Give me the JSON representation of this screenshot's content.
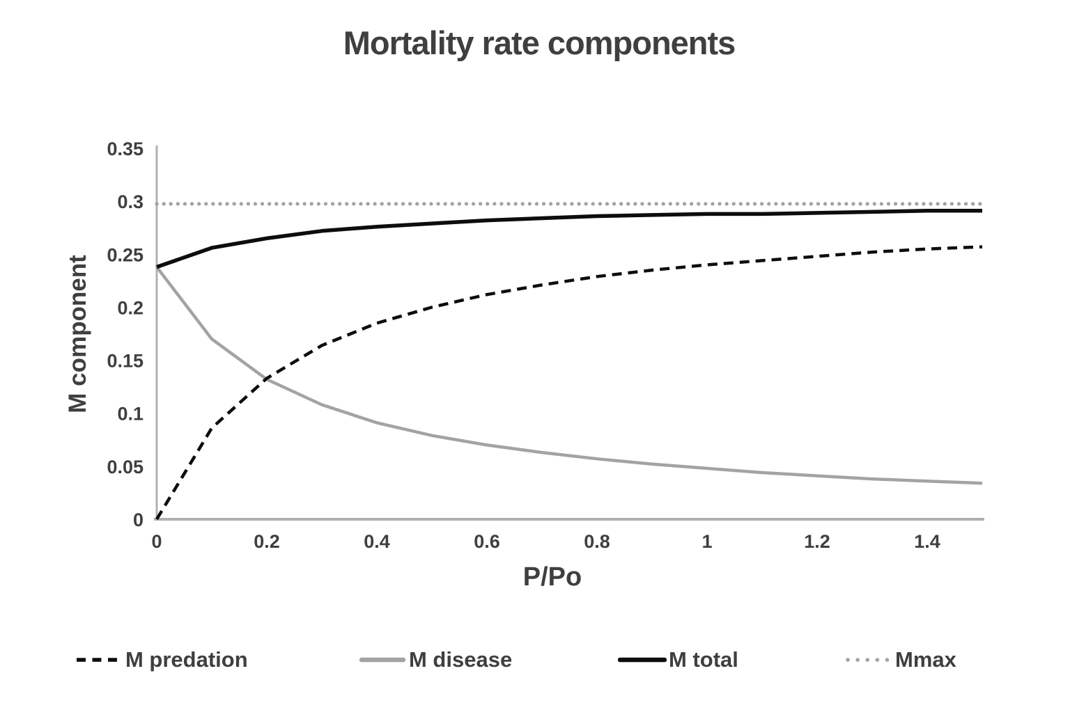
{
  "chart_data": {
    "type": "line",
    "title": "Mortality rate components",
    "xlabel": "P/Po",
    "ylabel": "M component",
    "xlim": [
      0,
      1.5
    ],
    "ylim": [
      0,
      0.35
    ],
    "grid": false,
    "legend_position": "bottom",
    "x_ticks": [
      "0",
      "0.2",
      "0.4",
      "0.6",
      "0.8",
      "1",
      "1.2",
      "1.4"
    ],
    "x_tick_values": [
      0,
      0.2,
      0.4,
      0.6,
      0.8,
      1,
      1.2,
      1.4
    ],
    "y_ticks": [
      "0",
      "0.05",
      "0.1",
      "0.15",
      "0.2",
      "0.25",
      "0.3",
      "0.35"
    ],
    "y_tick_values": [
      0,
      0.05,
      0.1,
      0.15,
      0.2,
      0.25,
      0.3,
      0.35
    ],
    "x": [
      0,
      0.1,
      0.2,
      0.3,
      0.4,
      0.5,
      0.6,
      0.7,
      0.8,
      0.9,
      1.0,
      1.1,
      1.2,
      1.3,
      1.4,
      1.5
    ],
    "series": [
      {
        "name": "M predation",
        "style": "dashed",
        "color": "#0d0d0d",
        "stroke_width": 4.5,
        "values": [
          0,
          0.086,
          0.133,
          0.164,
          0.185,
          0.2,
          0.212,
          0.221,
          0.229,
          0.235,
          0.24,
          0.244,
          0.248,
          0.252,
          0.255,
          0.257
        ]
      },
      {
        "name": "M disease",
        "style": "solid",
        "color": "#a3a3a3",
        "stroke_width": 4.5,
        "values": [
          0.238,
          0.17,
          0.132,
          0.108,
          0.091,
          0.079,
          0.07,
          0.063,
          0.057,
          0.052,
          0.048,
          0.044,
          0.041,
          0.038,
          0.036,
          0.034
        ]
      },
      {
        "name": "M total",
        "style": "solid",
        "color": "#0d0d0d",
        "stroke_width": 5.5,
        "values": [
          0.238,
          0.256,
          0.265,
          0.272,
          0.276,
          0.279,
          0.282,
          0.284,
          0.286,
          0.287,
          0.288,
          0.288,
          0.289,
          0.29,
          0.291,
          0.291
        ]
      },
      {
        "name": "Mmax",
        "style": "dotted",
        "color": "#a3a3a3",
        "stroke_width": 5.2,
        "values": [
          0.2975,
          0.2975,
          0.2975,
          0.2975,
          0.2975,
          0.2975,
          0.2975,
          0.2975,
          0.2975,
          0.2975,
          0.2975,
          0.2975,
          0.2975,
          0.2975,
          0.2975,
          0.2975
        ]
      }
    ]
  },
  "colors": {
    "text": "#3f3f3f",
    "axis": "#b0b0b0",
    "background": "#ffffff"
  }
}
